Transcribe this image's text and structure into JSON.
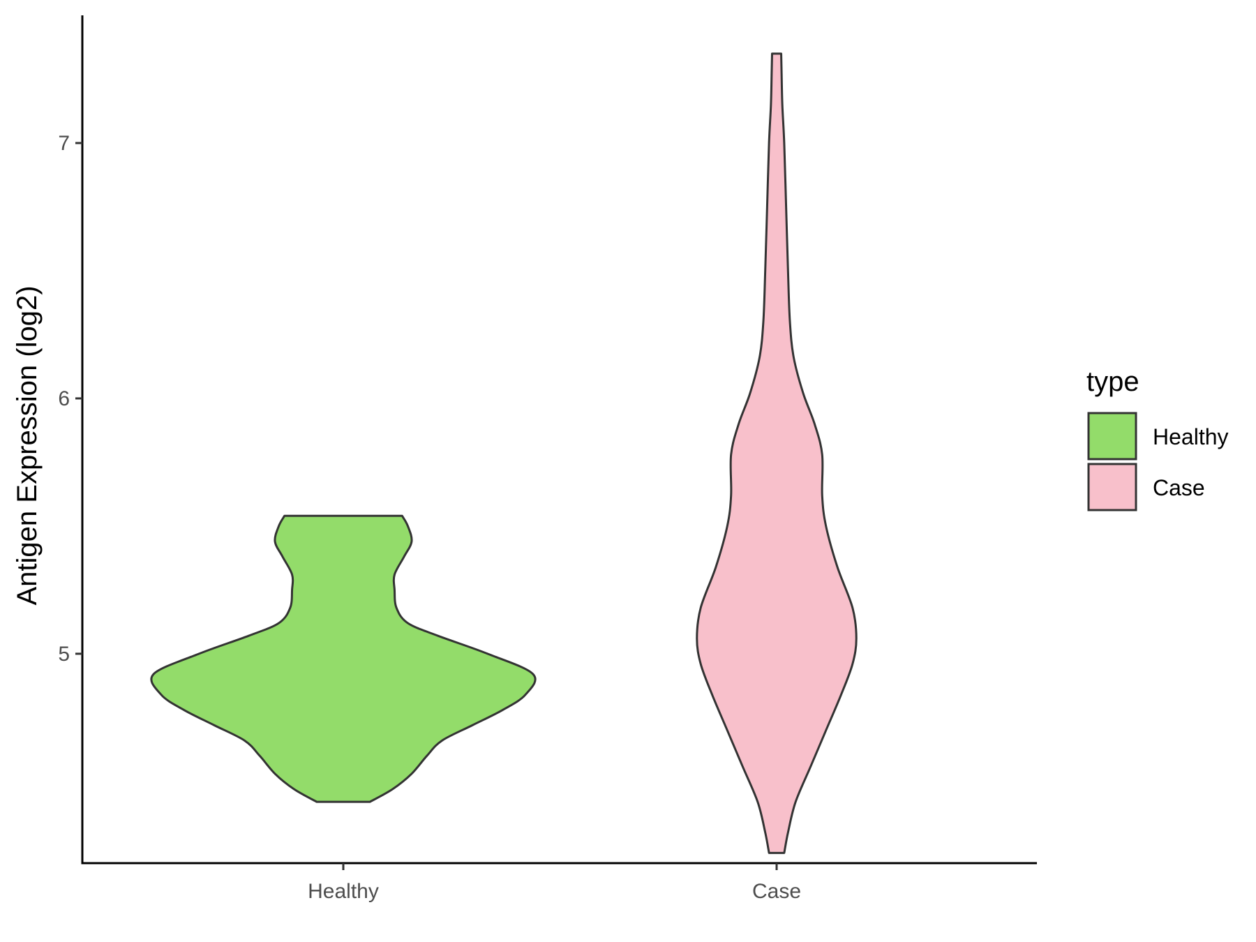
{
  "chart_data": {
    "type": "violin",
    "title": "",
    "xlabel": "",
    "ylabel": "Antigen Expression (log2)",
    "categories": [
      "Healthy",
      "Case"
    ],
    "ylim": [
      4.18,
      7.5
    ],
    "yticks": [
      5,
      6,
      7
    ],
    "grid": false,
    "legend": {
      "title": "type",
      "position": "right",
      "entries": [
        "Healthy",
        "Case"
      ]
    },
    "series": [
      {
        "category": "Healthy",
        "color": "#93DC6A",
        "min": 4.42,
        "max": 5.54,
        "profile": [
          [
            4.42,
            0.07
          ],
          [
            4.47,
            0.13
          ],
          [
            4.53,
            0.18
          ],
          [
            4.6,
            0.22
          ],
          [
            4.66,
            0.26
          ],
          [
            4.72,
            0.34
          ],
          [
            4.78,
            0.42
          ],
          [
            4.84,
            0.48
          ],
          [
            4.92,
            0.5
          ],
          [
            5.0,
            0.38
          ],
          [
            5.07,
            0.25
          ],
          [
            5.12,
            0.17
          ],
          [
            5.18,
            0.14
          ],
          [
            5.25,
            0.135
          ],
          [
            5.31,
            0.135
          ],
          [
            5.38,
            0.16
          ],
          [
            5.44,
            0.18
          ],
          [
            5.5,
            0.17
          ],
          [
            5.54,
            0.155
          ]
        ]
      },
      {
        "category": "Case",
        "color": "#F8C0CB",
        "min": 4.22,
        "max": 7.35,
        "profile": [
          [
            4.22,
            0.02
          ],
          [
            4.3,
            0.03
          ],
          [
            4.42,
            0.05
          ],
          [
            4.56,
            0.09
          ],
          [
            4.7,
            0.13
          ],
          [
            4.84,
            0.17
          ],
          [
            4.96,
            0.2
          ],
          [
            5.06,
            0.21
          ],
          [
            5.18,
            0.2
          ],
          [
            5.34,
            0.16
          ],
          [
            5.5,
            0.13
          ],
          [
            5.62,
            0.12
          ],
          [
            5.78,
            0.12
          ],
          [
            5.9,
            0.1
          ],
          [
            6.02,
            0.07
          ],
          [
            6.16,
            0.045
          ],
          [
            6.3,
            0.035
          ],
          [
            6.5,
            0.03
          ],
          [
            6.75,
            0.025
          ],
          [
            7.0,
            0.02
          ],
          [
            7.15,
            0.015
          ],
          [
            7.28,
            0.013
          ],
          [
            7.35,
            0.012
          ]
        ]
      }
    ]
  }
}
